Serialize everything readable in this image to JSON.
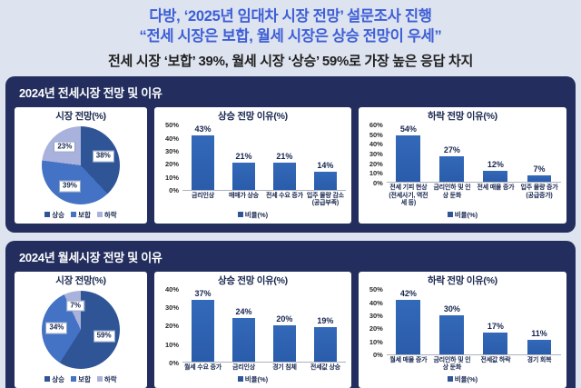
{
  "header": {
    "title_line1": "다방, ‘2025년 임대차 시장 전망’ 설문조사 진행",
    "title_line2": "“전세 시장은 보합, 월세 시장은 상승 전망이 우세”",
    "subtitle": "전세 시장 ‘보합’ 39%, 월세 시장 ‘상승’ 59%로 가장 높은 응답 차지"
  },
  "colors": {
    "title_blue": "#3d5ed6",
    "section_navy": "#232e5e",
    "bar_blue": "#2e63b2",
    "pie_up": "#2f5597",
    "pie_flat": "#4472c4",
    "pie_down": "#a9b2dc",
    "page_bg": "#dde3ef"
  },
  "sections": [
    {
      "title": "2024년 전세시장 전망 및 이유"
    },
    {
      "title": "2024년 월세시장 전망 및 이유"
    }
  ],
  "chart_data": [
    {
      "type": "pie",
      "title": "시장 전망(%)",
      "labels": [
        "상승",
        "보합",
        "하락"
      ],
      "values": [
        38,
        39,
        23
      ],
      "slice_colors": [
        "#2f5597",
        "#4472c4",
        "#a9b2dc"
      ],
      "legend_position": "bottom"
    },
    {
      "type": "bar",
      "title": "상승 전망 이유(%)",
      "categories": [
        "금리인상",
        "매매가 상승",
        "전세 수요 증가",
        "입주 물량 감소(공급부족)"
      ],
      "values": [
        43,
        21,
        21,
        14
      ],
      "ylim": [
        0,
        50
      ],
      "ytick_step": 10,
      "legend_label": "비율(%)",
      "legend_position": "bottom"
    },
    {
      "type": "bar",
      "title": "하락 전망 이유(%)",
      "categories": [
        "전세 기피 현상(전세사기, 역전세 등)",
        "금리인하 및 인상 둔화",
        "전세 매물 증가",
        "입주 물량 증가(공급증가)"
      ],
      "values": [
        54,
        27,
        12,
        7
      ],
      "ylim": [
        0,
        60
      ],
      "ytick_step": 10,
      "legend_label": "비율(%)",
      "legend_position": "bottom"
    },
    {
      "type": "pie",
      "title": "시장 전망(%)",
      "labels": [
        "상승",
        "보합",
        "하락"
      ],
      "values": [
        59,
        34,
        7
      ],
      "slice_colors": [
        "#2f5597",
        "#4472c4",
        "#a9b2dc"
      ],
      "legend_position": "bottom"
    },
    {
      "type": "bar",
      "title": "상승 전망 이유(%)",
      "categories": [
        "월세 수요 증가",
        "금리인상",
        "경기 침체",
        "전세값 상승"
      ],
      "values": [
        37,
        24,
        20,
        19
      ],
      "ylim": [
        0,
        40
      ],
      "ytick_step": 10,
      "legend_label": "비율(%)",
      "legend_position": "bottom"
    },
    {
      "type": "bar",
      "title": "하락 전망 이유(%)",
      "categories": [
        "월세 매물 증가",
        "금리인하 및 인상 둔화",
        "전세값 하락",
        "경기 회복"
      ],
      "values": [
        42,
        30,
        17,
        11
      ],
      "ylim": [
        0,
        50
      ],
      "ytick_step": 10,
      "legend_label": "비율(%)",
      "legend_position": "bottom"
    }
  ]
}
